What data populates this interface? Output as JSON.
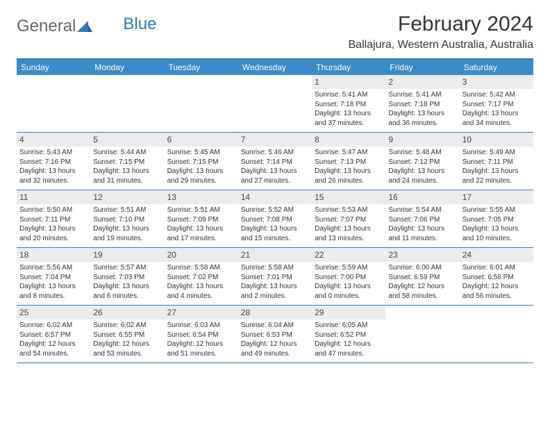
{
  "brand": {
    "part1": "General",
    "part2": "Blue"
  },
  "title": "February 2024",
  "location": "Ballajura, Western Australia, Australia",
  "colors": {
    "header_bg": "#3b8bc9",
    "header_text": "#ffffff",
    "rule": "#2b7bbf",
    "daynum_bg": "#ececec",
    "text": "#333333",
    "page_bg": "#ffffff"
  },
  "typography": {
    "title_fontsize": 30,
    "location_fontsize": 16,
    "weekday_fontsize": 12,
    "daynum_fontsize": 12,
    "body_fontsize": 10
  },
  "weekdays": [
    "Sunday",
    "Monday",
    "Tuesday",
    "Wednesday",
    "Thursday",
    "Friday",
    "Saturday"
  ],
  "weeks": [
    [
      {
        "n": "",
        "sr": "",
        "ss": "",
        "dl": ""
      },
      {
        "n": "",
        "sr": "",
        "ss": "",
        "dl": ""
      },
      {
        "n": "",
        "sr": "",
        "ss": "",
        "dl": ""
      },
      {
        "n": "",
        "sr": "",
        "ss": "",
        "dl": ""
      },
      {
        "n": "1",
        "sr": "Sunrise: 5:41 AM",
        "ss": "Sunset: 7:18 PM",
        "dl": "Daylight: 13 hours and 37 minutes."
      },
      {
        "n": "2",
        "sr": "Sunrise: 5:41 AM",
        "ss": "Sunset: 7:18 PM",
        "dl": "Daylight: 13 hours and 36 minutes."
      },
      {
        "n": "3",
        "sr": "Sunrise: 5:42 AM",
        "ss": "Sunset: 7:17 PM",
        "dl": "Daylight: 13 hours and 34 minutes."
      }
    ],
    [
      {
        "n": "4",
        "sr": "Sunrise: 5:43 AM",
        "ss": "Sunset: 7:16 PM",
        "dl": "Daylight: 13 hours and 32 minutes."
      },
      {
        "n": "5",
        "sr": "Sunrise: 5:44 AM",
        "ss": "Sunset: 7:15 PM",
        "dl": "Daylight: 13 hours and 31 minutes."
      },
      {
        "n": "6",
        "sr": "Sunrise: 5:45 AM",
        "ss": "Sunset: 7:15 PM",
        "dl": "Daylight: 13 hours and 29 minutes."
      },
      {
        "n": "7",
        "sr": "Sunrise: 5:46 AM",
        "ss": "Sunset: 7:14 PM",
        "dl": "Daylight: 13 hours and 27 minutes."
      },
      {
        "n": "8",
        "sr": "Sunrise: 5:47 AM",
        "ss": "Sunset: 7:13 PM",
        "dl": "Daylight: 13 hours and 26 minutes."
      },
      {
        "n": "9",
        "sr": "Sunrise: 5:48 AM",
        "ss": "Sunset: 7:12 PM",
        "dl": "Daylight: 13 hours and 24 minutes."
      },
      {
        "n": "10",
        "sr": "Sunrise: 5:49 AM",
        "ss": "Sunset: 7:11 PM",
        "dl": "Daylight: 13 hours and 22 minutes."
      }
    ],
    [
      {
        "n": "11",
        "sr": "Sunrise: 5:50 AM",
        "ss": "Sunset: 7:11 PM",
        "dl": "Daylight: 13 hours and 20 minutes."
      },
      {
        "n": "12",
        "sr": "Sunrise: 5:51 AM",
        "ss": "Sunset: 7:10 PM",
        "dl": "Daylight: 13 hours and 19 minutes."
      },
      {
        "n": "13",
        "sr": "Sunrise: 5:51 AM",
        "ss": "Sunset: 7:09 PM",
        "dl": "Daylight: 13 hours and 17 minutes."
      },
      {
        "n": "14",
        "sr": "Sunrise: 5:52 AM",
        "ss": "Sunset: 7:08 PM",
        "dl": "Daylight: 13 hours and 15 minutes."
      },
      {
        "n": "15",
        "sr": "Sunrise: 5:53 AM",
        "ss": "Sunset: 7:07 PM",
        "dl": "Daylight: 13 hours and 13 minutes."
      },
      {
        "n": "16",
        "sr": "Sunrise: 5:54 AM",
        "ss": "Sunset: 7:06 PM",
        "dl": "Daylight: 13 hours and 11 minutes."
      },
      {
        "n": "17",
        "sr": "Sunrise: 5:55 AM",
        "ss": "Sunset: 7:05 PM",
        "dl": "Daylight: 13 hours and 10 minutes."
      }
    ],
    [
      {
        "n": "18",
        "sr": "Sunrise: 5:56 AM",
        "ss": "Sunset: 7:04 PM",
        "dl": "Daylight: 13 hours and 8 minutes."
      },
      {
        "n": "19",
        "sr": "Sunrise: 5:57 AM",
        "ss": "Sunset: 7:03 PM",
        "dl": "Daylight: 13 hours and 6 minutes."
      },
      {
        "n": "20",
        "sr": "Sunrise: 5:58 AM",
        "ss": "Sunset: 7:02 PM",
        "dl": "Daylight: 13 hours and 4 minutes."
      },
      {
        "n": "21",
        "sr": "Sunrise: 5:58 AM",
        "ss": "Sunset: 7:01 PM",
        "dl": "Daylight: 13 hours and 2 minutes."
      },
      {
        "n": "22",
        "sr": "Sunrise: 5:59 AM",
        "ss": "Sunset: 7:00 PM",
        "dl": "Daylight: 13 hours and 0 minutes."
      },
      {
        "n": "23",
        "sr": "Sunrise: 6:00 AM",
        "ss": "Sunset: 6:59 PM",
        "dl": "Daylight: 12 hours and 58 minutes."
      },
      {
        "n": "24",
        "sr": "Sunrise: 6:01 AM",
        "ss": "Sunset: 6:58 PM",
        "dl": "Daylight: 12 hours and 56 minutes."
      }
    ],
    [
      {
        "n": "25",
        "sr": "Sunrise: 6:02 AM",
        "ss": "Sunset: 6:57 PM",
        "dl": "Daylight: 12 hours and 54 minutes."
      },
      {
        "n": "26",
        "sr": "Sunrise: 6:02 AM",
        "ss": "Sunset: 6:55 PM",
        "dl": "Daylight: 12 hours and 53 minutes."
      },
      {
        "n": "27",
        "sr": "Sunrise: 6:03 AM",
        "ss": "Sunset: 6:54 PM",
        "dl": "Daylight: 12 hours and 51 minutes."
      },
      {
        "n": "28",
        "sr": "Sunrise: 6:04 AM",
        "ss": "Sunset: 6:53 PM",
        "dl": "Daylight: 12 hours and 49 minutes."
      },
      {
        "n": "29",
        "sr": "Sunrise: 6:05 AM",
        "ss": "Sunset: 6:52 PM",
        "dl": "Daylight: 12 hours and 47 minutes."
      },
      {
        "n": "",
        "sr": "",
        "ss": "",
        "dl": ""
      },
      {
        "n": "",
        "sr": "",
        "ss": "",
        "dl": ""
      }
    ]
  ]
}
